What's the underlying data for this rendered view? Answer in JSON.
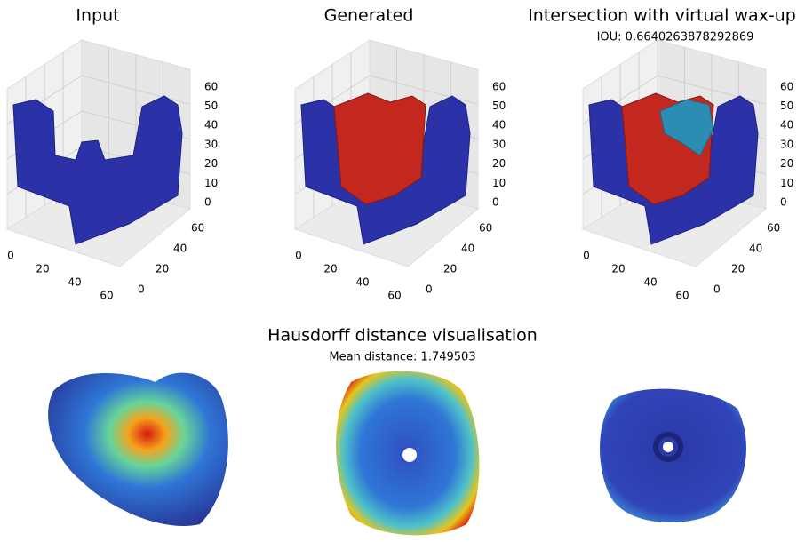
{
  "panels": [
    {
      "title": "Input"
    },
    {
      "title": "Generated"
    },
    {
      "title": "Intersection with virtual wax-up",
      "subtitle": "IOU: 0.6640263878292869"
    }
  ],
  "axes": {
    "x_ticks": [
      0,
      20,
      40,
      60
    ],
    "y_ticks": [
      0,
      20,
      40,
      60
    ],
    "z_ticks": [
      0,
      10,
      20,
      30,
      40,
      50,
      60
    ]
  },
  "bottom": {
    "title": "Hausdorff distance visualisation",
    "subtitle": "Mean distance: 1.749503"
  }
}
